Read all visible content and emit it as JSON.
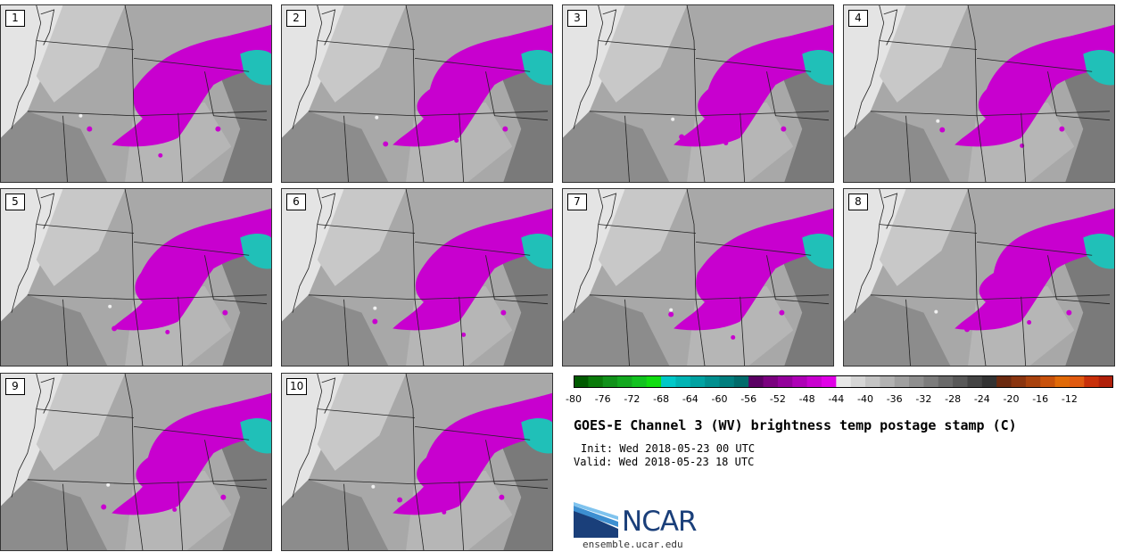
{
  "panels": [
    {
      "label": "1"
    },
    {
      "label": "2"
    },
    {
      "label": "3"
    },
    {
      "label": "4"
    },
    {
      "label": "5"
    },
    {
      "label": "6"
    },
    {
      "label": "7"
    },
    {
      "label": "8"
    },
    {
      "label": "9"
    },
    {
      "label": "10"
    }
  ],
  "colorbar": {
    "min": -80,
    "max": -10,
    "step": 2,
    "tick_labels": [
      "-80",
      "-76",
      "-72",
      "-68",
      "-64",
      "-60",
      "-56",
      "-52",
      "-48",
      "-44",
      "-40",
      "-36",
      "-32",
      "-28",
      "-24",
      "-20",
      "-16",
      "-12"
    ],
    "colors": [
      "#005a00",
      "#0a7a0a",
      "#11911a",
      "#13a81f",
      "#12c21f",
      "#11dc11",
      "#00c8c8",
      "#00b4b4",
      "#00a2a2",
      "#008f8f",
      "#007e7e",
      "#006b6b",
      "#5a0063",
      "#7a007f",
      "#93009b",
      "#ae00b6",
      "#c800cf",
      "#e000e6",
      "#e8e8e8",
      "#d6d6d6",
      "#c4c4c4",
      "#b2b2b2",
      "#a0a0a0",
      "#8e8e8e",
      "#7c7c7c",
      "#6a6a6a",
      "#585858",
      "#444444",
      "#333333",
      "#6b2a10",
      "#8a3510",
      "#a8420e",
      "#c8520c",
      "#e06a08",
      "#e05a10",
      "#c8300a",
      "#b0200a"
    ]
  },
  "title": "GOES-E Channel 3 (WV) brightness temp postage stamp (C)",
  "init": "Init: Wed 2018-05-23 00 UTC",
  "valid": "Valid: Wed 2018-05-23 18 UTC",
  "logo_text": "NCAR",
  "site": "ensemble.ucar.edu"
}
